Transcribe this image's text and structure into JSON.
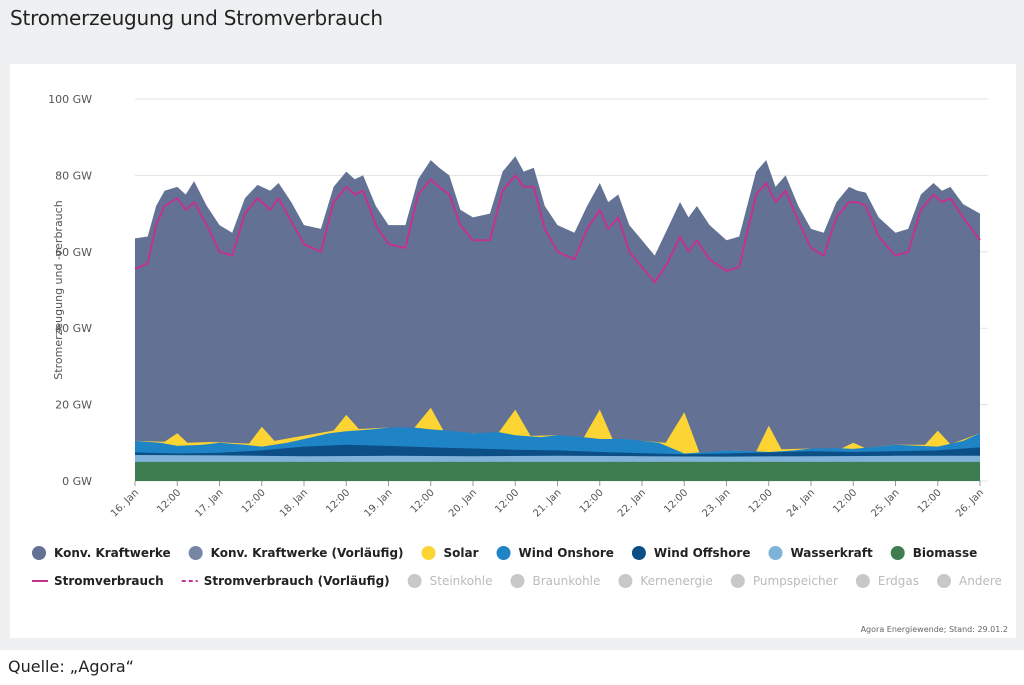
{
  "header": {
    "title": "Stromerzeugung und Stromverbrauch"
  },
  "credit": "Agora Energiewende; Stand: 29.01.2",
  "source": "Quelle: „Agora“",
  "colors": {
    "konv": "#637294",
    "konv_vorl": "#7886a6",
    "solar": "#fcd434",
    "wind_onshore": "#1f84c6",
    "wind_offshore": "#0b4f86",
    "wasserkraft": "#7fb2d8",
    "biomasse": "#3e7d4f",
    "verbrauch": "#c2338f",
    "inactive": "#c8c8c8",
    "grid": "#e3e3e3"
  },
  "chart_data": {
    "type": "area",
    "ylabel": "Stromerzeugung und -verbrauch",
    "xlim": [
      16,
      26
    ],
    "ylim": [
      0,
      100
    ],
    "y_ticks": [
      {
        "v": 0,
        "label": "0 GW"
      },
      {
        "v": 20,
        "label": "20 GW"
      },
      {
        "v": 40,
        "label": "40 GW"
      },
      {
        "v": 60,
        "label": "60 GW"
      },
      {
        "v": 80,
        "label": "80 GW"
      },
      {
        "v": 100,
        "label": "100 GW"
      }
    ],
    "x_ticks": [
      {
        "v": 16,
        "label": "16. Jan"
      },
      {
        "v": 16.5,
        "label": "12:00"
      },
      {
        "v": 17,
        "label": "17. Jan"
      },
      {
        "v": 17.5,
        "label": "12:00"
      },
      {
        "v": 18,
        "label": "18. Jan"
      },
      {
        "v": 18.5,
        "label": "12:00"
      },
      {
        "v": 19,
        "label": "19. Jan"
      },
      {
        "v": 19.5,
        "label": "12:00"
      },
      {
        "v": 20,
        "label": "20. Jan"
      },
      {
        "v": 20.5,
        "label": "12:00"
      },
      {
        "v": 21,
        "label": "21. Jan"
      },
      {
        "v": 21.5,
        "label": "12:00"
      },
      {
        "v": 22,
        "label": "22. Jan"
      },
      {
        "v": 22.5,
        "label": "12:00"
      },
      {
        "v": 23,
        "label": "23. Jan"
      },
      {
        "v": 23.5,
        "label": "12:00"
      },
      {
        "v": 24,
        "label": "24. Jan"
      },
      {
        "v": 24.5,
        "label": "12:00"
      },
      {
        "v": 25,
        "label": "25. Jan"
      },
      {
        "v": 25.5,
        "label": "12:00"
      },
      {
        "v": 26,
        "label": "26. Jan"
      }
    ],
    "series": [
      {
        "name": "Biomasse",
        "color": "#3e7d4f",
        "points": [
          [
            16,
            5
          ],
          [
            26,
            5
          ]
        ]
      },
      {
        "name": "Wasserkraft",
        "color": "#7fb2d8",
        "points": [
          [
            16,
            6.8
          ],
          [
            17,
            6.7
          ],
          [
            18,
            6.5
          ],
          [
            19,
            6.6
          ],
          [
            20,
            6.5
          ],
          [
            21,
            6.6
          ],
          [
            22,
            6.5
          ],
          [
            23,
            6.4
          ],
          [
            24,
            6.5
          ],
          [
            25,
            6.6
          ],
          [
            26,
            6.6
          ]
        ]
      },
      {
        "name": "Wind Offshore",
        "color": "#0b4f86",
        "points": [
          [
            16,
            7.5
          ],
          [
            16.5,
            7.2
          ],
          [
            17,
            7.4
          ],
          [
            17.5,
            8
          ],
          [
            18,
            9
          ],
          [
            18.5,
            9.5
          ],
          [
            19,
            9.2
          ],
          [
            19.5,
            8.8
          ],
          [
            20,
            8.5
          ],
          [
            20.5,
            8.2
          ],
          [
            21,
            8
          ],
          [
            21.5,
            7.6
          ],
          [
            22,
            7.3
          ],
          [
            22.5,
            7
          ],
          [
            23,
            7.2
          ],
          [
            23.5,
            7.5
          ],
          [
            24,
            7.8
          ],
          [
            24.5,
            7.6
          ],
          [
            25,
            7.8
          ],
          [
            25.5,
            8
          ],
          [
            26,
            8.8
          ]
        ]
      },
      {
        "name": "Wind Onshore",
        "color": "#1f84c6",
        "points": [
          [
            16,
            10.5
          ],
          [
            16.3,
            10
          ],
          [
            16.5,
            9.2
          ],
          [
            16.8,
            9.5
          ],
          [
            17,
            10
          ],
          [
            17.3,
            9.5
          ],
          [
            17.5,
            9
          ],
          [
            17.8,
            10
          ],
          [
            18,
            11
          ],
          [
            18.3,
            12.5
          ],
          [
            18.5,
            13
          ],
          [
            18.8,
            13.5
          ],
          [
            19,
            14
          ],
          [
            19.3,
            14
          ],
          [
            19.5,
            13.5
          ],
          [
            19.8,
            13
          ],
          [
            20,
            12.5
          ],
          [
            20.3,
            12.8
          ],
          [
            20.5,
            12
          ],
          [
            20.8,
            11.5
          ],
          [
            21,
            12
          ],
          [
            21.3,
            11.5
          ],
          [
            21.5,
            11
          ],
          [
            21.8,
            11
          ],
          [
            22,
            10.5
          ],
          [
            22.2,
            10
          ],
          [
            22.5,
            7.2
          ],
          [
            22.7,
            7.5
          ],
          [
            23,
            8
          ],
          [
            23.3,
            7.8
          ],
          [
            23.5,
            7.6
          ],
          [
            23.8,
            8
          ],
          [
            24,
            8.5
          ],
          [
            24.3,
            8.6
          ],
          [
            24.5,
            8.4
          ],
          [
            24.8,
            9
          ],
          [
            25,
            9.5
          ],
          [
            25.3,
            9.2
          ],
          [
            25.5,
            9
          ],
          [
            25.8,
            10.5
          ],
          [
            26,
            12.5
          ]
        ]
      },
      {
        "name": "Solar",
        "color": "#fcd434",
        "points": [
          [
            16,
            10.5
          ],
          [
            16.35,
            10.3
          ],
          [
            16.5,
            12.5
          ],
          [
            16.62,
            10
          ],
          [
            16.9,
            10.2
          ],
          [
            17.35,
            9.8
          ],
          [
            17.5,
            14.2
          ],
          [
            17.65,
            10.5
          ],
          [
            17.9,
            11.5
          ],
          [
            18.35,
            13.2
          ],
          [
            18.5,
            17.3
          ],
          [
            18.65,
            13.6
          ],
          [
            19,
            14
          ],
          [
            19.3,
            13.8
          ],
          [
            19.5,
            19.2
          ],
          [
            19.67,
            12.4
          ],
          [
            20,
            12.5
          ],
          [
            20.3,
            12.6
          ],
          [
            20.5,
            18.7
          ],
          [
            20.68,
            11.8
          ],
          [
            21,
            12
          ],
          [
            21.3,
            11
          ],
          [
            21.5,
            18.7
          ],
          [
            21.66,
            10.5
          ],
          [
            22,
            10.5
          ],
          [
            22.28,
            10
          ],
          [
            22.5,
            18
          ],
          [
            22.68,
            7.4
          ],
          [
            23,
            8
          ],
          [
            23.35,
            7.7
          ],
          [
            23.5,
            14.5
          ],
          [
            23.65,
            8.3
          ],
          [
            24,
            8.5
          ],
          [
            24.35,
            8.4
          ],
          [
            24.5,
            10
          ],
          [
            24.64,
            8.6
          ],
          [
            25,
            9.5
          ],
          [
            25.35,
            9.5
          ],
          [
            25.5,
            13.2
          ],
          [
            25.65,
            9.6
          ],
          [
            26,
            12.5
          ]
        ]
      },
      {
        "name": "Konv. Kraftwerke",
        "color": "#637294",
        "points": [
          [
            16,
            63.5
          ],
          [
            16.15,
            64
          ],
          [
            16.25,
            72
          ],
          [
            16.35,
            76
          ],
          [
            16.5,
            77
          ],
          [
            16.6,
            75
          ],
          [
            16.7,
            78.5
          ],
          [
            16.85,
            72
          ],
          [
            17,
            67
          ],
          [
            17.15,
            65
          ],
          [
            17.3,
            74
          ],
          [
            17.45,
            77.5
          ],
          [
            17.6,
            76
          ],
          [
            17.7,
            78
          ],
          [
            17.85,
            73
          ],
          [
            18,
            67
          ],
          [
            18.2,
            66
          ],
          [
            18.35,
            77
          ],
          [
            18.5,
            81
          ],
          [
            18.6,
            79
          ],
          [
            18.7,
            80
          ],
          [
            18.85,
            72
          ],
          [
            19,
            67
          ],
          [
            19.2,
            67
          ],
          [
            19.35,
            79
          ],
          [
            19.5,
            84
          ],
          [
            19.6,
            82
          ],
          [
            19.72,
            80
          ],
          [
            19.85,
            71
          ],
          [
            20,
            69
          ],
          [
            20.2,
            70
          ],
          [
            20.35,
            81
          ],
          [
            20.5,
            85
          ],
          [
            20.6,
            81
          ],
          [
            20.72,
            82
          ],
          [
            20.85,
            72
          ],
          [
            21,
            67
          ],
          [
            21.2,
            65
          ],
          [
            21.35,
            72
          ],
          [
            21.5,
            78
          ],
          [
            21.6,
            73
          ],
          [
            21.72,
            75
          ],
          [
            21.85,
            67
          ],
          [
            22,
            63
          ],
          [
            22.15,
            59
          ],
          [
            22.3,
            66
          ],
          [
            22.45,
            73
          ],
          [
            22.55,
            69
          ],
          [
            22.65,
            72
          ],
          [
            22.8,
            67
          ],
          [
            23,
            63
          ],
          [
            23.15,
            64
          ],
          [
            23.35,
            81
          ],
          [
            23.47,
            84
          ],
          [
            23.58,
            77
          ],
          [
            23.7,
            80
          ],
          [
            23.85,
            72
          ],
          [
            24,
            66
          ],
          [
            24.15,
            65
          ],
          [
            24.3,
            73
          ],
          [
            24.45,
            77
          ],
          [
            24.55,
            76
          ],
          [
            24.65,
            75.5
          ],
          [
            24.8,
            69
          ],
          [
            25,
            65
          ],
          [
            25.15,
            66
          ],
          [
            25.3,
            75
          ],
          [
            25.45,
            78
          ],
          [
            25.55,
            76
          ],
          [
            25.65,
            77
          ],
          [
            25.8,
            72.5
          ],
          [
            26,
            70
          ]
        ]
      }
    ],
    "stromverbrauch": {
      "name": "Stromverbrauch",
      "color": "#c2338f",
      "points": [
        [
          16,
          55.5
        ],
        [
          16.15,
          57
        ],
        [
          16.25,
          67
        ],
        [
          16.35,
          72
        ],
        [
          16.5,
          74
        ],
        [
          16.6,
          71
        ],
        [
          16.7,
          73
        ],
        [
          16.85,
          67
        ],
        [
          17,
          60
        ],
        [
          17.15,
          59
        ],
        [
          17.3,
          70
        ],
        [
          17.45,
          74
        ],
        [
          17.6,
          71
        ],
        [
          17.7,
          74
        ],
        [
          17.85,
          68
        ],
        [
          18,
          62
        ],
        [
          18.2,
          60
        ],
        [
          18.35,
          73
        ],
        [
          18.5,
          77
        ],
        [
          18.6,
          75
        ],
        [
          18.7,
          76
        ],
        [
          18.85,
          67
        ],
        [
          19,
          62
        ],
        [
          19.2,
          61
        ],
        [
          19.35,
          75
        ],
        [
          19.5,
          79
        ],
        [
          19.6,
          77
        ],
        [
          19.72,
          75
        ],
        [
          19.85,
          67
        ],
        [
          20,
          63
        ],
        [
          20.2,
          63
        ],
        [
          20.35,
          76
        ],
        [
          20.5,
          80
        ],
        [
          20.6,
          77
        ],
        [
          20.72,
          77
        ],
        [
          20.85,
          66
        ],
        [
          21,
          60
        ],
        [
          21.2,
          58
        ],
        [
          21.35,
          66
        ],
        [
          21.5,
          71
        ],
        [
          21.6,
          66
        ],
        [
          21.72,
          69
        ],
        [
          21.85,
          60
        ],
        [
          22,
          56
        ],
        [
          22.15,
          52
        ],
        [
          22.3,
          57
        ],
        [
          22.45,
          64
        ],
        [
          22.55,
          60
        ],
        [
          22.65,
          63
        ],
        [
          22.8,
          58
        ],
        [
          23,
          55
        ],
        [
          23.15,
          56
        ],
        [
          23.35,
          75
        ],
        [
          23.47,
          78
        ],
        [
          23.58,
          73
        ],
        [
          23.7,
          76
        ],
        [
          23.85,
          68
        ],
        [
          24,
          61
        ],
        [
          24.15,
          59
        ],
        [
          24.3,
          69
        ],
        [
          24.45,
          73
        ],
        [
          24.55,
          73
        ],
        [
          24.65,
          72
        ],
        [
          24.8,
          64
        ],
        [
          25,
          59
        ],
        [
          25.15,
          60
        ],
        [
          25.3,
          71
        ],
        [
          25.45,
          75
        ],
        [
          25.55,
          73
        ],
        [
          25.65,
          74
        ],
        [
          25.8,
          69
        ],
        [
          26,
          63
        ]
      ]
    },
    "legend": [
      [
        {
          "label": "Konv. Kraftwerke",
          "kind": "dot",
          "color": "#637294",
          "active": true
        },
        {
          "label": "Konv. Kraftwerke (Vorläufig)",
          "kind": "dot",
          "color": "#7886a6",
          "active": true
        },
        {
          "label": "Solar",
          "kind": "dot",
          "color": "#fcd434",
          "active": true
        },
        {
          "label": "Wind Onshore",
          "kind": "dot",
          "color": "#1f84c6",
          "active": true
        },
        {
          "label": "Wind Offshore",
          "kind": "dot",
          "color": "#0b4f86",
          "active": true
        },
        {
          "label": "Wasserkraft",
          "kind": "dot",
          "color": "#7fb2d8",
          "active": true
        },
        {
          "label": "Biomasse",
          "kind": "dot",
          "color": "#3e7d4f",
          "active": true
        }
      ],
      [
        {
          "label": "Stromverbrauch",
          "kind": "line",
          "color": "#c2338f",
          "active": true
        },
        {
          "label": "Stromverbrauch (Vorläufig)",
          "kind": "dash",
          "color": "#c2338f",
          "active": true
        },
        {
          "label": "Steinkohle",
          "kind": "dot",
          "color": "#c8c8c8",
          "active": false
        },
        {
          "label": "Braunkohle",
          "kind": "dot",
          "color": "#c8c8c8",
          "active": false
        },
        {
          "label": "Kernenergie",
          "kind": "dot",
          "color": "#c8c8c8",
          "active": false
        },
        {
          "label": "Pumpspeicher",
          "kind": "dot",
          "color": "#c8c8c8",
          "active": false
        },
        {
          "label": "Erdgas",
          "kind": "dot",
          "color": "#c8c8c8",
          "active": false
        },
        {
          "label": "Andere",
          "kind": "dot",
          "color": "#c8c8c8",
          "active": false
        }
      ]
    ]
  }
}
